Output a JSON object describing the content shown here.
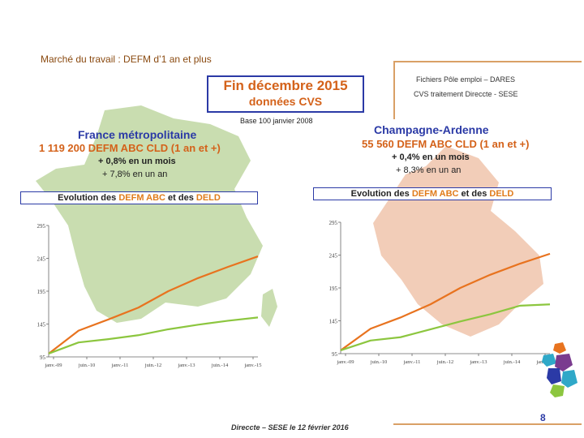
{
  "slide": {
    "title": "Marché du travail : DEFM d’1 an et plus",
    "period_main": "Fin  décembre  2015",
    "period_sub": "données CVS",
    "source_line1": "Fichiers Pôle emploi – DARES",
    "source_line2": "CVS traitement Direccte - SESE",
    "base_note": "Base 100 janvier 2008",
    "footer": "Direccte – SESE le 12 février 2016",
    "page_number": "8"
  },
  "france": {
    "name": "France métropolitaine",
    "value_line": "1 119 200  DEFM ABC CLD (1 an et +)",
    "monthly": "+ 0,8%  en un mois",
    "yearly": "+ 7,8%  en un an",
    "evo_prefix": "Evolution des ",
    "evo_hl1": "DEFM ABC",
    "evo_mid": " et des ",
    "evo_hl2": "DELD"
  },
  "champagne": {
    "name": "Champagne-Ardenne",
    "value_line": "55 560  DEFM ABC CLD (1 an et +)",
    "monthly": "+ 0,4%  en un mois",
    "yearly": "+ 8,3%  en un an",
    "evo_prefix": "Evolution des ",
    "evo_hl1": "DEFM ABC",
    "evo_mid": " et des ",
    "evo_hl2": "DELD"
  },
  "colors": {
    "defm_abc": "#e8731f",
    "deld": "#8cc63f",
    "title_blue": "#2b3aa6",
    "accent_orange": "#d4621a",
    "france_map": "#c9ddb0",
    "champagne_map": "#f2cdb8"
  },
  "chart_data": [
    {
      "type": "line",
      "title": "Evolution des DEFM ABC et des DELD",
      "region": "France métropolitaine",
      "yticks": [
        95,
        145,
        195,
        245,
        295
      ],
      "ylim": [
        95,
        295
      ],
      "xticks": [
        "janv.-09",
        "juin.-10",
        "janv.-11",
        "juin.-12",
        "janv.-13",
        "juin.-14",
        "janv.-15"
      ],
      "x": [
        0,
        12,
        24,
        36,
        48,
        60,
        72,
        84
      ],
      "series": [
        {
          "name": "DEFM ABC",
          "color": "#e8731f",
          "values": [
            100,
            135,
            152,
            170,
            195,
            215,
            232,
            248
          ]
        },
        {
          "name": "DELD",
          "color": "#8cc63f",
          "values": [
            100,
            117,
            122,
            128,
            137,
            144,
            150,
            155
          ]
        }
      ]
    },
    {
      "type": "line",
      "title": "Evolution des DEFM ABC et des DELD",
      "region": "Champagne-Ardenne",
      "yticks": [
        95,
        145,
        195,
        245,
        295
      ],
      "ylim": [
        95,
        295
      ],
      "xticks": [
        "janv.-09",
        "juin.-10",
        "janv.-11",
        "juin.-12",
        "janv.-13",
        "juin.-14",
        "janv.-15"
      ],
      "x": [
        0,
        12,
        24,
        36,
        48,
        60,
        72,
        84
      ],
      "series": [
        {
          "name": "DEFM ABC",
          "color": "#e8731f",
          "values": [
            100,
            133,
            150,
            170,
            195,
            215,
            232,
            247
          ]
        },
        {
          "name": "DELD",
          "color": "#8cc63f",
          "values": [
            100,
            115,
            120,
            132,
            144,
            155,
            168,
            170
          ]
        }
      ]
    }
  ]
}
